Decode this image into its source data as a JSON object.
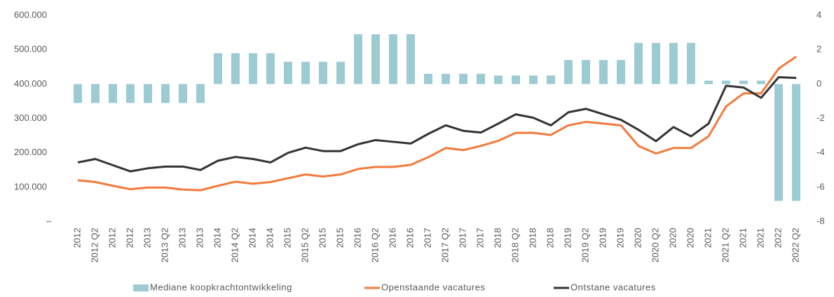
{
  "chart_data": {
    "type": "combo",
    "categories": [
      "2012",
      "2012 Q2",
      "2012",
      "2012",
      "2013",
      "2013 Q2",
      "2013",
      "2013",
      "2014",
      "2014 Q2",
      "2014",
      "2014",
      "2015",
      "2015 Q2",
      "2015",
      "2015",
      "2016",
      "2016 Q2",
      "2016",
      "2016",
      "2017",
      "2017 Q2",
      "2017",
      "2017",
      "2018",
      "2018 Q2",
      "2018",
      "2018",
      "2019",
      "2019 Q2",
      "2019",
      "2019",
      "2020",
      "2020 Q2",
      "2020",
      "2020",
      "2021",
      "2021 Q2",
      "2021",
      "2021",
      "2022",
      "2022 Q2"
    ],
    "series": [
      {
        "name": "Mediane koopkrachtontwikkeling",
        "type": "bar",
        "axis": "y2",
        "color": "#9dcbd3",
        "values": [
          -1.1,
          -1.1,
          -1.1,
          -1.1,
          -1.1,
          -1.1,
          -1.1,
          -1.1,
          1.8,
          1.8,
          1.8,
          1.8,
          1.3,
          1.3,
          1.3,
          1.3,
          2.9,
          2.9,
          2.9,
          2.9,
          0.6,
          0.6,
          0.6,
          0.6,
          0.5,
          0.5,
          0.5,
          0.5,
          1.4,
          1.4,
          1.4,
          1.4,
          2.4,
          2.4,
          2.4,
          2.4,
          0.2,
          0.2,
          0.2,
          0.2,
          -6.8,
          -6.8
        ]
      },
      {
        "name": "Openstaande vacatures",
        "type": "line",
        "color": "#f37a3b",
        "values": [
          120000,
          115000,
          104000,
          94000,
          99000,
          99000,
          93000,
          91000,
          104000,
          116000,
          110000,
          115000,
          126000,
          137000,
          131000,
          137000,
          153000,
          159000,
          159000,
          165000,
          187000,
          214000,
          208000,
          220000,
          235000,
          258000,
          258000,
          252000,
          280000,
          290000,
          285000,
          280000,
          220000,
          198000,
          214000,
          214000,
          248000,
          335000,
          373000,
          373000,
          445000,
          480000
        ]
      },
      {
        "name": "Ontstane vacatures",
        "type": "line",
        "color": "#333333",
        "values": [
          172000,
          182000,
          164000,
          146000,
          155000,
          160000,
          160000,
          150000,
          177000,
          188000,
          182000,
          172000,
          200000,
          215000,
          205000,
          205000,
          225000,
          237000,
          232000,
          227000,
          255000,
          280000,
          264000,
          259000,
          285000,
          312000,
          302000,
          280000,
          318000,
          328000,
          312000,
          296000,
          267000,
          234000,
          275000,
          248000,
          285000,
          395000,
          390000,
          360000,
          420000,
          418000
        ]
      }
    ],
    "ylim": [
      0,
      600000
    ],
    "yticks": [
      {
        "value": 0,
        "label": "–"
      },
      {
        "value": 100000,
        "label": "100.000"
      },
      {
        "value": 200000,
        "label": "200.000"
      },
      {
        "value": 300000,
        "label": "300.000"
      },
      {
        "value": 400000,
        "label": "400.000"
      },
      {
        "value": 500000,
        "label": "500.000"
      },
      {
        "value": 600000,
        "label": "600.000"
      }
    ],
    "y2lim": [
      -8,
      4
    ],
    "y2ticks": [
      -8,
      -6,
      -4,
      -2,
      0,
      2,
      4
    ],
    "legend": "bottom"
  }
}
